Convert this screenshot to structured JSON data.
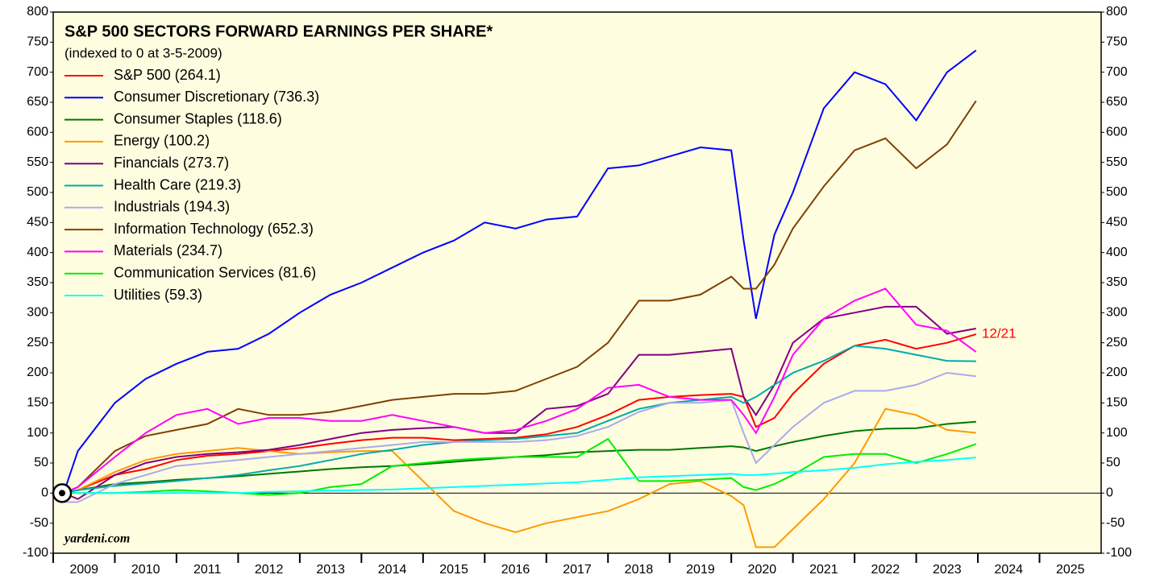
{
  "chart_data": {
    "type": "line",
    "title": "S&P 500 SECTORS FORWARD EARNINGS PER SHARE*",
    "subtitle": "(indexed to 0 at 3-5-2009)",
    "source": "yardeni.com",
    "annotation": "12/21",
    "xlim": [
      2009,
      2026
    ],
    "xticks": [
      {
        "value": 2009,
        "label": "2009"
      },
      {
        "value": 2010,
        "label": "2010"
      },
      {
        "value": 2011,
        "label": "2011"
      },
      {
        "value": 2012,
        "label": "2012"
      },
      {
        "value": 2013,
        "label": "2013"
      },
      {
        "value": 2014,
        "label": "2014"
      },
      {
        "value": 2015,
        "label": "2015"
      },
      {
        "value": 2016,
        "label": "2016"
      },
      {
        "value": 2017,
        "label": "2017"
      },
      {
        "value": 2018,
        "label": "2018"
      },
      {
        "value": 2019,
        "label": "2019"
      },
      {
        "value": 2020,
        "label": "2020"
      },
      {
        "value": 2021,
        "label": "2021"
      },
      {
        "value": 2022,
        "label": "2022"
      },
      {
        "value": 2023,
        "label": "2023"
      },
      {
        "value": 2024,
        "label": "2024"
      },
      {
        "value": 2025,
        "label": "2025"
      }
    ],
    "ylim": [
      -100,
      800
    ],
    "yticks": [
      -100,
      -50,
      0,
      50,
      100,
      150,
      200,
      250,
      300,
      350,
      400,
      450,
      500,
      550,
      600,
      650,
      700,
      750,
      800
    ],
    "grid": false,
    "legend": "upper left",
    "x": [
      2009.17,
      2009.4,
      2010,
      2010.5,
      2011,
      2011.5,
      2012,
      2012.5,
      2013,
      2013.5,
      2014,
      2014.5,
      2015,
      2015.5,
      2016,
      2016.5,
      2017,
      2017.5,
      2018,
      2018.5,
      2019,
      2019.5,
      2020,
      2020.2,
      2020.4,
      2020.7,
      2021,
      2021.5,
      2022,
      2022.5,
      2023,
      2023.5,
      2023.97
    ],
    "series": [
      {
        "name": "S&P 500 (264.1)",
        "color": "#ff0000",
        "values": [
          0,
          5,
          30,
          40,
          55,
          62,
          65,
          70,
          75,
          82,
          88,
          92,
          92,
          88,
          90,
          92,
          98,
          110,
          130,
          155,
          160,
          163,
          165,
          160,
          110,
          125,
          165,
          215,
          245,
          255,
          240,
          250,
          264.1
        ]
      },
      {
        "name": "Consumer Discretionary (736.3)",
        "color": "#0000ff",
        "values": [
          0,
          70,
          150,
          190,
          215,
          235,
          240,
          265,
          300,
          330,
          350,
          375,
          400,
          420,
          450,
          440,
          455,
          460,
          540,
          545,
          560,
          575,
          570,
          420,
          290,
          430,
          500,
          640,
          700,
          680,
          620,
          700,
          736.3
        ]
      },
      {
        "name": "Consumer Staples (118.6)",
        "color": "#007700",
        "values": [
          0,
          5,
          15,
          18,
          22,
          25,
          28,
          32,
          36,
          40,
          43,
          45,
          48,
          52,
          56,
          60,
          63,
          68,
          70,
          72,
          72,
          75,
          78,
          76,
          70,
          78,
          85,
          95,
          103,
          107,
          108,
          115,
          118.6
        ]
      },
      {
        "name": "Energy (100.2)",
        "color": "#ff9900",
        "values": [
          0,
          5,
          35,
          55,
          65,
          70,
          75,
          70,
          65,
          68,
          70,
          70,
          20,
          -30,
          -50,
          -65,
          -50,
          -40,
          -30,
          -10,
          15,
          20,
          -5,
          -20,
          -90,
          -90,
          -60,
          -10,
          50,
          140,
          130,
          105,
          100.2
        ]
      },
      {
        "name": "Financials (273.7)",
        "color": "#800080",
        "values": [
          0,
          -10,
          30,
          50,
          60,
          65,
          68,
          72,
          80,
          90,
          100,
          105,
          108,
          110,
          100,
          100,
          140,
          145,
          165,
          230,
          230,
          235,
          240,
          160,
          130,
          180,
          250,
          290,
          300,
          310,
          310,
          265,
          273.7
        ]
      },
      {
        "name": "Health Care (219.3)",
        "color": "#00aaaa",
        "values": [
          0,
          5,
          12,
          16,
          20,
          25,
          30,
          38,
          45,
          55,
          65,
          72,
          80,
          85,
          88,
          90,
          95,
          100,
          120,
          140,
          150,
          155,
          160,
          150,
          160,
          180,
          200,
          220,
          245,
          240,
          230,
          220,
          219.3
        ]
      },
      {
        "name": "Industrials (194.3)",
        "color": "#aaaaee",
        "values": [
          -15,
          -15,
          15,
          30,
          45,
          50,
          55,
          60,
          65,
          70,
          75,
          80,
          85,
          85,
          85,
          85,
          88,
          95,
          110,
          135,
          150,
          150,
          155,
          100,
          50,
          80,
          110,
          150,
          170,
          170,
          180,
          200,
          194.3
        ]
      },
      {
        "name": "Information Technology (652.3)",
        "color": "#804000",
        "values": [
          0,
          10,
          70,
          95,
          105,
          115,
          140,
          130,
          130,
          135,
          145,
          155,
          160,
          165,
          165,
          170,
          190,
          210,
          250,
          320,
          320,
          330,
          360,
          340,
          340,
          380,
          440,
          510,
          570,
          590,
          540,
          580,
          652.3
        ]
      },
      {
        "name": "Materials (234.7)",
        "color": "#ff00ff",
        "values": [
          0,
          10,
          60,
          100,
          130,
          140,
          115,
          125,
          125,
          120,
          120,
          130,
          120,
          110,
          100,
          105,
          120,
          140,
          175,
          180,
          160,
          155,
          155,
          130,
          100,
          160,
          230,
          290,
          320,
          340,
          280,
          270,
          234.7
        ]
      },
      {
        "name": "Communication Services (81.6)",
        "color": "#00ee00",
        "values": [
          0,
          0,
          0,
          2,
          5,
          3,
          0,
          -3,
          0,
          10,
          15,
          45,
          50,
          55,
          58,
          60,
          60,
          60,
          90,
          20,
          20,
          22,
          25,
          10,
          5,
          15,
          30,
          60,
          65,
          65,
          50,
          65,
          81.6
        ]
      },
      {
        "name": "Utilities (59.3)",
        "color": "#00ffff",
        "values": [
          0,
          0,
          0,
          0,
          0,
          0,
          0,
          2,
          3,
          4,
          5,
          6,
          8,
          10,
          12,
          14,
          16,
          18,
          22,
          26,
          28,
          30,
          32,
          30,
          30,
          32,
          35,
          38,
          42,
          48,
          52,
          55,
          59.3
        ]
      }
    ]
  }
}
